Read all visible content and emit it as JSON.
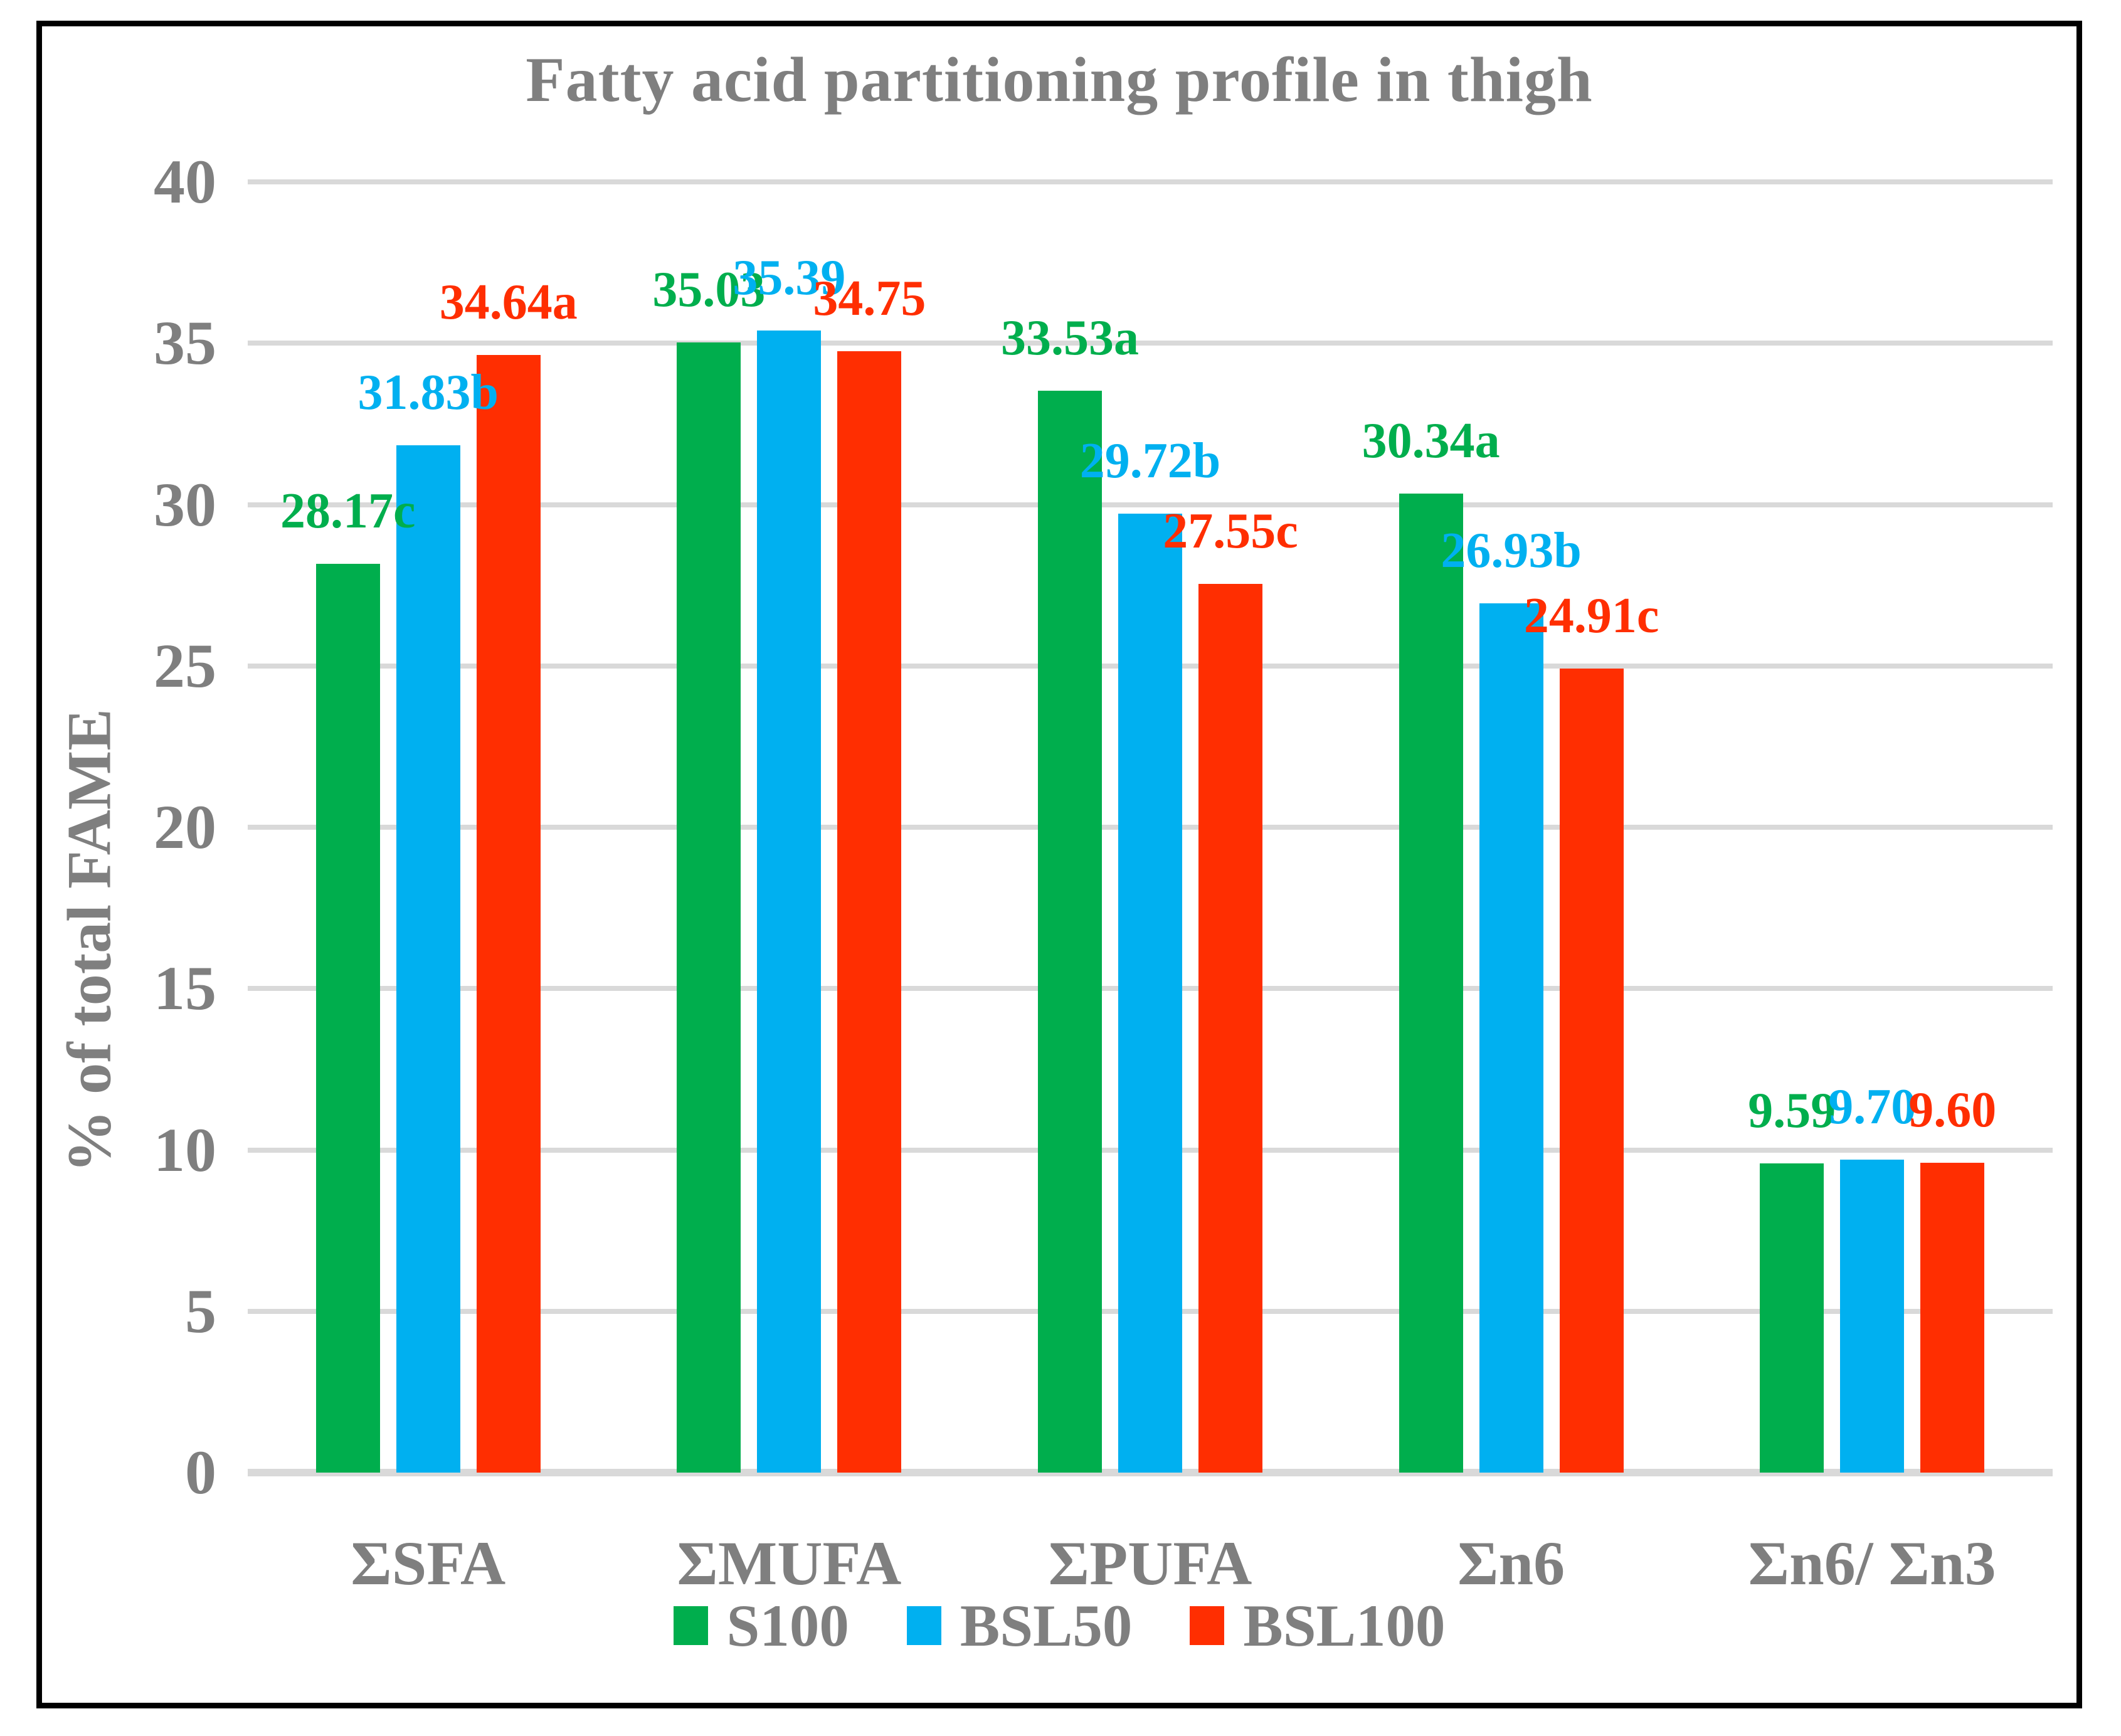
{
  "title": "Fatty acid partitioning profile in thigh",
  "y_axis_title": "% of total FAME",
  "colors": {
    "s100_green": "#00AE4D",
    "bsl50_blue": "#00B0F0",
    "bsl100_red": "#FF2E01",
    "text_gray": "#7F7F7F",
    "gridline_gray": "#D9D9D9",
    "frame_black": "#000000"
  },
  "chart_data": {
    "type": "bar",
    "title": "Fatty acid partitioning profile in thigh",
    "xlabel": "",
    "ylabel": "% of total FAME",
    "ylim": [
      0,
      40
    ],
    "yticks": [
      0,
      5,
      10,
      15,
      20,
      25,
      30,
      35,
      40
    ],
    "grid": true,
    "legend_position": "bottom",
    "categories": [
      "ΣSFA",
      "ΣMUFA",
      "ΣPUFA",
      "Σn6",
      "Σn6/ Σn3"
    ],
    "series": [
      {
        "name": "S100",
        "color": "#00AE4D",
        "values": [
          28.17,
          35.03,
          33.53,
          30.34,
          9.59
        ],
        "data_labels": [
          "28.17c",
          "35.03",
          "33.53a",
          "30.34a",
          "9.59"
        ]
      },
      {
        "name": "BSL50",
        "color": "#00B0F0",
        "values": [
          31.83,
          35.39,
          29.72,
          26.93,
          9.7
        ],
        "data_labels": [
          "31.83b",
          "35.39",
          "29.72b",
          "26.93b",
          "9.70"
        ]
      },
      {
        "name": "BSL100",
        "color": "#FF2E01",
        "values": [
          34.64,
          34.75,
          27.55,
          24.91,
          9.6
        ],
        "data_labels": [
          "34.64a",
          "34.75",
          "27.55c",
          "24.91c",
          "9.60"
        ]
      }
    ]
  }
}
